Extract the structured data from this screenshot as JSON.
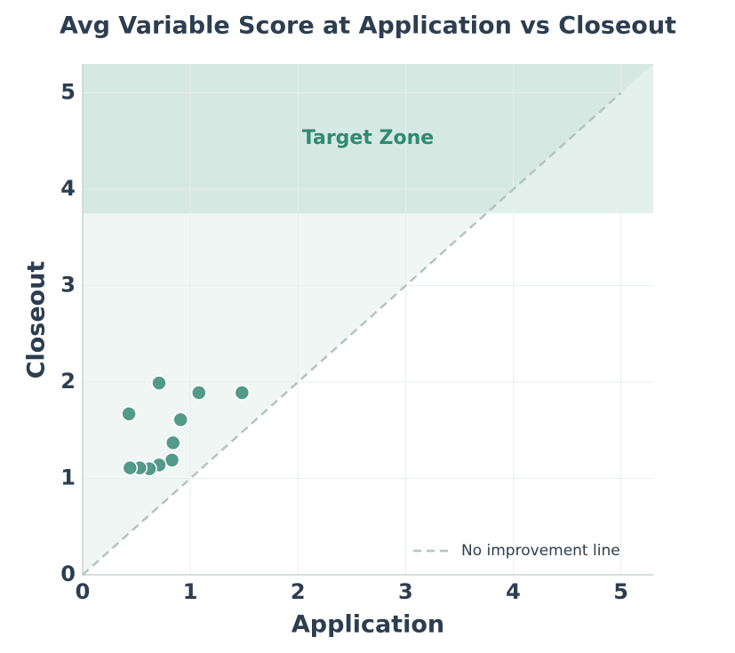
{
  "chart_data": {
    "type": "scatter",
    "title": "Avg Variable Score at Application vs Closeout",
    "xlabel": "Application",
    "ylabel": "Closeout",
    "x": [
      0.43,
      0.71,
      1.08,
      1.48,
      0.91,
      0.84,
      0.83,
      0.71,
      0.62,
      0.53,
      0.44
    ],
    "values": [
      1.67,
      1.99,
      1.89,
      1.89,
      1.61,
      1.37,
      1.19,
      1.14,
      1.1,
      1.11,
      1.11
    ],
    "color": "#4a9582",
    "xlim": [
      0,
      5.3
    ],
    "ylim": [
      0,
      5.3
    ],
    "xticks": [
      0,
      1,
      2,
      3,
      4,
      5
    ],
    "yticks": [
      0,
      1,
      2,
      3,
      4,
      5
    ],
    "grid": true,
    "target_zone": {
      "label": "Target Zone",
      "ymin": 3.75,
      "color": "#2e8b70"
    },
    "reference_line": {
      "label": "No improvement line",
      "x": [
        0,
        5
      ],
      "y": [
        0,
        5
      ],
      "color": "#b4c4c0"
    },
    "legend": "lower right"
  }
}
